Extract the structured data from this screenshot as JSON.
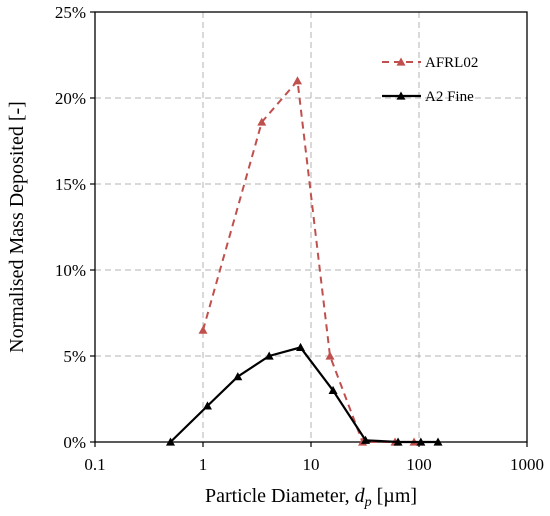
{
  "chart_data": {
    "type": "line",
    "xlabel": "Particle Diameter, ",
    "xlabel_var": "d",
    "xlabel_sub": "p",
    "xlabel_unit": " [µm]",
    "ylabel": "Normalised Mass Deposited [-]",
    "x_scale": "log",
    "xlim": [
      0.1,
      1000
    ],
    "ylim": [
      0,
      25
    ],
    "x_ticks": [
      0.1,
      1,
      10,
      100,
      1000
    ],
    "x_tick_labels": [
      "0.1",
      "1",
      "10",
      "100",
      "1000"
    ],
    "y_ticks": [
      0,
      5,
      10,
      15,
      20,
      25
    ],
    "y_tick_labels": [
      "0%",
      "5%",
      "10%",
      "15%",
      "20%",
      "25%"
    ],
    "grid": true,
    "legend_position": "top-right",
    "series": [
      {
        "name": "AFRL02",
        "color": "#c0504d",
        "line_style": "dashed",
        "marker": "triangle",
        "x": [
          1,
          3.5,
          7.5,
          15,
          30,
          60,
          90
        ],
        "y": [
          6.5,
          18.6,
          21.0,
          5.0,
          0.0,
          0.0,
          0.0
        ]
      },
      {
        "name": "A2 Fine",
        "color": "#000000",
        "line_style": "solid",
        "marker": "triangle",
        "x": [
          0.5,
          1.1,
          2.1,
          4.1,
          8.0,
          16,
          32,
          64,
          104,
          150
        ],
        "y": [
          0.0,
          2.1,
          3.8,
          5.0,
          5.5,
          3.0,
          0.1,
          0.0,
          0.0,
          0.0
        ]
      }
    ]
  }
}
